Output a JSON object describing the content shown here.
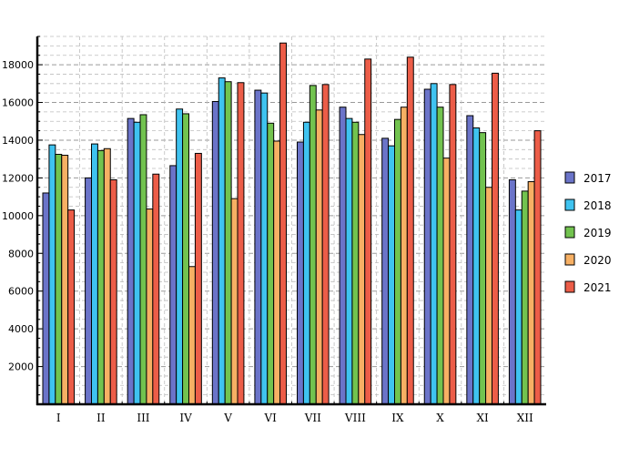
{
  "chart_data": {
    "type": "bar",
    "categories": [
      "I",
      "II",
      "III",
      "IV",
      "V",
      "VI",
      "VII",
      "VIII",
      "IX",
      "X",
      "XI",
      "XII"
    ],
    "series": [
      {
        "name": "2017",
        "color": "#6b74c9",
        "values": [
          11200,
          12000,
          15150,
          12650,
          16050,
          16650,
          13900,
          15750,
          14100,
          16700,
          15300,
          11900
        ]
      },
      {
        "name": "2018",
        "color": "#3fc3f0",
        "values": [
          13750,
          13800,
          14950,
          15650,
          17300,
          16500,
          14950,
          15150,
          13700,
          17000,
          14650,
          10300
        ]
      },
      {
        "name": "2019",
        "color": "#72c34f",
        "values": [
          13250,
          13450,
          15350,
          15400,
          17100,
          14900,
          16900,
          14950,
          15100,
          15750,
          14400,
          11300
        ]
      },
      {
        "name": "2020",
        "color": "#f7b064",
        "values": [
          13200,
          13550,
          10350,
          7300,
          10900,
          13950,
          15600,
          14300,
          15750,
          13050,
          11500,
          11800
        ]
      },
      {
        "name": "2021",
        "color": "#ec5d48",
        "values": [
          10300,
          11900,
          12200,
          13300,
          17050,
          19150,
          16950,
          18300,
          18400,
          16950,
          17550,
          14500
        ]
      }
    ],
    "yticks": [
      2000,
      4000,
      6000,
      8000,
      10000,
      12000,
      14000,
      16000,
      18000
    ],
    "ylim": [
      0,
      19500
    ],
    "grid": true,
    "legend_position": "right"
  }
}
